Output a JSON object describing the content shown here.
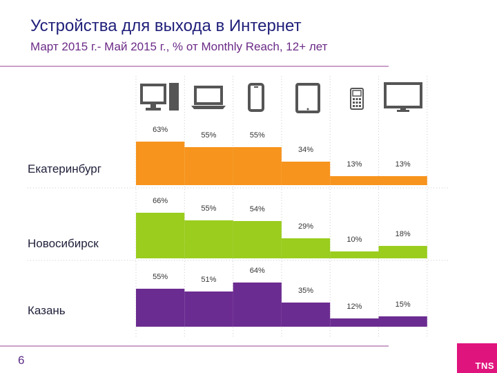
{
  "header": {
    "title": "Устройства для выхода в Интернет",
    "subtitle": "Март 2015 г.- Май 2015 г., % от Monthly Reach, 12+ лет"
  },
  "footer": {
    "page_number": "6",
    "logo_text": "TNS"
  },
  "devices": [
    {
      "name": "desktop-computer",
      "icon": "desktop-icon"
    },
    {
      "name": "laptop",
      "icon": "laptop-icon"
    },
    {
      "name": "smartphone",
      "icon": "smartphone-icon"
    },
    {
      "name": "tablet",
      "icon": "tablet-icon"
    },
    {
      "name": "mobile-phone",
      "icon": "feature-phone-icon"
    },
    {
      "name": "tv",
      "icon": "tv-icon"
    }
  ],
  "chart_data": {
    "type": "bar",
    "title": "Устройства для выхода в Интернет",
    "subtitle": "Март 2015 г.- Май 2015 г., % от Monthly Reach, 12+ лет",
    "categories": [
      "desktop",
      "laptop",
      "smartphone",
      "tablet",
      "mobile phone",
      "TV"
    ],
    "series": [
      {
        "name": "Екатеринбург",
        "color": "#f7941d",
        "values": [
          63,
          55,
          55,
          34,
          13,
          13
        ],
        "labels": [
          "63%",
          "55%",
          "55%",
          "34%",
          "13%",
          "13%"
        ]
      },
      {
        "name": "Новосибирск",
        "color": "#9acd1e",
        "values": [
          66,
          55,
          54,
          29,
          10,
          18
        ],
        "labels": [
          "66%",
          "55%",
          "54%",
          "29%",
          "10%",
          "18%"
        ]
      },
      {
        "name": "Казань",
        "color": "#6b2c91",
        "values": [
          55,
          51,
          64,
          35,
          12,
          15
        ],
        "labels": [
          "55%",
          "51%",
          "64%",
          "35%",
          "12%",
          "15%"
        ]
      }
    ],
    "ylim": [
      0,
      100
    ]
  }
}
